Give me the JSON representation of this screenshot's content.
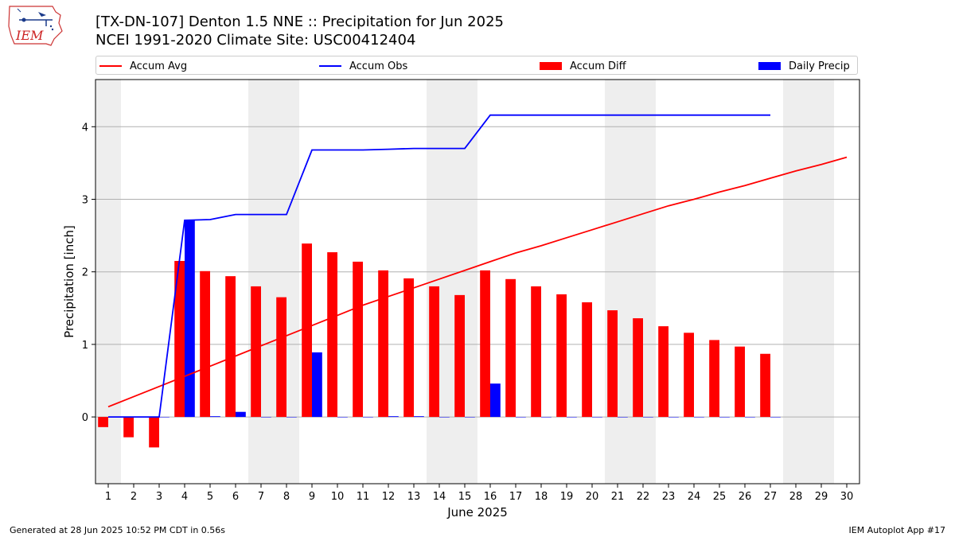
{
  "logo": {
    "text": "IEM"
  },
  "title": {
    "line1": "[TX-DN-107] Denton 1.5 NNE :: Precipitation for Jun 2025",
    "line2": "NCEI 1991-2020 Climate Site: USC00412404"
  },
  "legend": {
    "accum_avg": "Accum Avg",
    "accum_obs": "Accum Obs",
    "accum_diff": "Accum Diff",
    "daily_precip": "Daily Precip"
  },
  "footer": {
    "left": "Generated at 28 Jun 2025 10:52 PM CDT in 0.56s",
    "right": "IEM Autoplot App #17"
  },
  "colors": {
    "avg": "#ff0000",
    "obs": "#0000ff",
    "diff": "#ff0000",
    "daily": "#0000ff",
    "weekend": "#eeeeee",
    "grid": "#b0b0b0"
  },
  "chart_data": {
    "type": "bar",
    "xlabel": "June 2025",
    "ylabel": "Precipitation [inch]",
    "xlim": [
      0.5,
      30.5
    ],
    "ylim": [
      -0.92,
      4.65
    ],
    "yticks": [
      0,
      1,
      2,
      3,
      4
    ],
    "grid": "y-major",
    "legend_position": "top",
    "days": [
      1,
      2,
      3,
      4,
      5,
      6,
      7,
      8,
      9,
      10,
      11,
      12,
      13,
      14,
      15,
      16,
      17,
      18,
      19,
      20,
      21,
      22,
      23,
      24,
      25,
      26,
      27,
      28,
      29,
      30
    ],
    "weekend_days": [
      1,
      7,
      8,
      14,
      15,
      21,
      22,
      28,
      29
    ],
    "series": [
      {
        "name": "Accum Avg",
        "kind": "line",
        "values": [
          0.14,
          0.28,
          0.42,
          0.56,
          0.7,
          0.84,
          0.98,
          1.12,
          1.26,
          1.4,
          1.54,
          1.66,
          1.78,
          1.9,
          2.02,
          2.14,
          2.26,
          2.36,
          2.47,
          2.58,
          2.69,
          2.8,
          2.91,
          3.0,
          3.1,
          3.19,
          3.29,
          3.39,
          3.48,
          3.58
        ]
      },
      {
        "name": "Accum Obs",
        "kind": "line",
        "values": [
          0.0,
          0.0,
          0.0,
          2.71,
          2.72,
          2.79,
          2.79,
          2.79,
          3.68,
          3.68,
          3.68,
          3.69,
          3.7,
          3.7,
          3.7,
          4.16,
          4.16,
          4.16,
          4.16,
          4.16,
          4.16,
          4.16,
          4.16,
          4.16,
          4.16,
          4.16,
          4.16
        ]
      },
      {
        "name": "Accum Diff",
        "kind": "bar",
        "values": [
          -0.14,
          -0.28,
          -0.42,
          2.15,
          2.01,
          1.94,
          1.8,
          1.65,
          2.39,
          2.27,
          2.14,
          2.02,
          1.91,
          1.8,
          1.68,
          2.02,
          1.9,
          1.8,
          1.69,
          1.58,
          1.47,
          1.36,
          1.25,
          1.16,
          1.06,
          0.97,
          0.87
        ]
      },
      {
        "name": "Daily Precip",
        "kind": "bar",
        "values": [
          0.0,
          0.0,
          0.0,
          2.71,
          0.01,
          0.07,
          0.0,
          0.0,
          0.89,
          0.0,
          0.0,
          0.01,
          0.01,
          0.0,
          0.0,
          0.46,
          0.0,
          0.0,
          0.0,
          0.0,
          0.0,
          0.0,
          0.0,
          0.0,
          0.0,
          0.0,
          0.0
        ]
      }
    ]
  }
}
